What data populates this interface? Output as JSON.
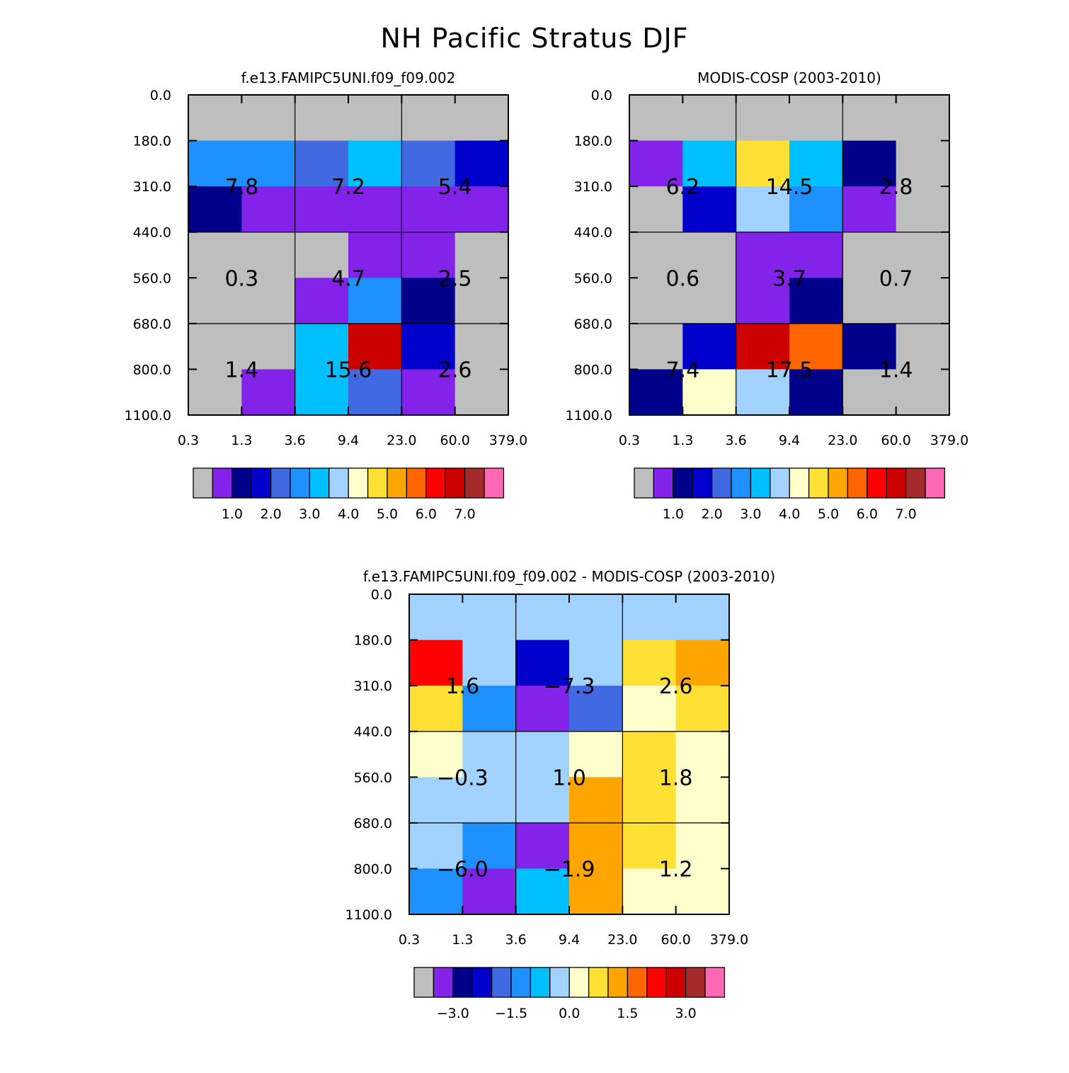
{
  "title": "NH Pacific Stratus DJF",
  "x_tick_labels": [
    "0.3",
    "1.3",
    "3.6",
    "9.4",
    "23.0",
    "60.0",
    "379.0"
  ],
  "y_tick_labels": [
    "0.0",
    "180.0",
    "310.0",
    "440.0",
    "560.0",
    "680.0",
    "800.0",
    "1100.0"
  ],
  "palette": [
    "#bebebe",
    "#8323ea",
    "#00008b",
    "#0000cd",
    "#4169e1",
    "#1e90ff",
    "#00bfff",
    "#a2d2ff",
    "#ffffcc",
    "#ffe135",
    "#ffa500",
    "#ff6600",
    "#ff0000",
    "#cd0000",
    "#a52a2a",
    "#ff69b4"
  ],
  "chart_data": [
    {
      "type": "heatmap",
      "title": "f.e13.FAMIPC5UNI.f09_f09.002",
      "x_ticks": [
        "0.3",
        "1.3",
        "3.6",
        "9.4",
        "23.0",
        "60.0",
        "379.0"
      ],
      "y_ticks": [
        "0.0",
        "180.0",
        "310.0",
        "440.0",
        "560.0",
        "680.0",
        "800.0",
        "1100.0"
      ],
      "cells": [
        [
          "#bebebe",
          "#bebebe",
          "#bebebe",
          "#bebebe",
          "#bebebe",
          "#bebebe"
        ],
        [
          "#1e90ff",
          "#1e90ff",
          "#4169e1",
          "#00bfff",
          "#4169e1",
          "#0000cd"
        ],
        [
          "#00008b",
          "#8323ea",
          "#8323ea",
          "#8323ea",
          "#8323ea",
          "#8323ea"
        ],
        [
          "#bebebe",
          "#bebebe",
          "#bebebe",
          "#8323ea",
          "#8323ea",
          "#bebebe"
        ],
        [
          "#bebebe",
          "#bebebe",
          "#8323ea",
          "#1e90ff",
          "#00008b",
          "#bebebe"
        ],
        [
          "#bebebe",
          "#bebebe",
          "#00bfff",
          "#cd0000",
          "#0000cd",
          "#bebebe"
        ],
        [
          "#bebebe",
          "#8323ea",
          "#00bfff",
          "#4169e1",
          "#8323ea",
          "#bebebe"
        ]
      ],
      "box_values": [
        [
          "7.8",
          "7.2",
          "5.4"
        ],
        [
          "0.3",
          "4.7",
          "2.5"
        ],
        [
          "1.4",
          "15.6",
          "2.6"
        ]
      ],
      "colorbar": {
        "colors": [
          "#bebebe",
          "#8323ea",
          "#00008b",
          "#0000cd",
          "#4169e1",
          "#1e90ff",
          "#00bfff",
          "#a2d2ff",
          "#ffffcc",
          "#ffe135",
          "#ffa500",
          "#ff6600",
          "#ff0000",
          "#cd0000",
          "#a52a2a",
          "#ff69b4"
        ],
        "labels": [
          "1.0",
          "2.0",
          "3.0",
          "4.0",
          "5.0",
          "6.0",
          "7.0"
        ],
        "label_boundaries": [
          2,
          4,
          6,
          8,
          10,
          12,
          14
        ]
      }
    },
    {
      "type": "heatmap",
      "title": "MODIS-COSP (2003-2010)",
      "x_ticks": [
        "0.3",
        "1.3",
        "3.6",
        "9.4",
        "23.0",
        "60.0",
        "379.0"
      ],
      "y_ticks": [
        "0.0",
        "180.0",
        "310.0",
        "440.0",
        "560.0",
        "680.0",
        "800.0",
        "1100.0"
      ],
      "cells": [
        [
          "#bebebe",
          "#bebebe",
          "#bebebe",
          "#bebebe",
          "#bebebe",
          "#bebebe"
        ],
        [
          "#8323ea",
          "#00bfff",
          "#ffe135",
          "#00bfff",
          "#00008b",
          "#bebebe"
        ],
        [
          "#bebebe",
          "#0000cd",
          "#a2d2ff",
          "#1e90ff",
          "#8323ea",
          "#bebebe"
        ],
        [
          "#bebebe",
          "#bebebe",
          "#8323ea",
          "#8323ea",
          "#bebebe",
          "#bebebe"
        ],
        [
          "#bebebe",
          "#bebebe",
          "#8323ea",
          "#00008b",
          "#bebebe",
          "#bebebe"
        ],
        [
          "#bebebe",
          "#0000cd",
          "#cd0000",
          "#ff6600",
          "#00008b",
          "#bebebe"
        ],
        [
          "#00008b",
          "#ffffcc",
          "#a2d2ff",
          "#00008b",
          "#bebebe",
          "#bebebe"
        ]
      ],
      "box_values": [
        [
          "6.2",
          "14.5",
          "2.8"
        ],
        [
          "0.6",
          "3.7",
          "0.7"
        ],
        [
          "7.4",
          "17.5",
          "1.4"
        ]
      ],
      "colorbar": {
        "colors": [
          "#bebebe",
          "#8323ea",
          "#00008b",
          "#0000cd",
          "#4169e1",
          "#1e90ff",
          "#00bfff",
          "#a2d2ff",
          "#ffffcc",
          "#ffe135",
          "#ffa500",
          "#ff6600",
          "#ff0000",
          "#cd0000",
          "#a52a2a",
          "#ff69b4"
        ],
        "labels": [
          "1.0",
          "2.0",
          "3.0",
          "4.0",
          "5.0",
          "6.0",
          "7.0"
        ],
        "label_boundaries": [
          2,
          4,
          6,
          8,
          10,
          12,
          14
        ]
      }
    },
    {
      "type": "heatmap",
      "title": "f.e13.FAMIPC5UNI.f09_f09.002 - MODIS-COSP (2003-2010)",
      "x_ticks": [
        "0.3",
        "1.3",
        "3.6",
        "9.4",
        "23.0",
        "60.0",
        "379.0"
      ],
      "y_ticks": [
        "0.0",
        "180.0",
        "310.0",
        "440.0",
        "560.0",
        "680.0",
        "800.0",
        "1100.0"
      ],
      "cells": [
        [
          "#a2d2ff",
          "#a2d2ff",
          "#a2d2ff",
          "#a2d2ff",
          "#a2d2ff",
          "#a2d2ff"
        ],
        [
          "#ff0000",
          "#a2d2ff",
          "#0000cd",
          "#a2d2ff",
          "#ffe135",
          "#ffa500"
        ],
        [
          "#ffe135",
          "#1e90ff",
          "#8323ea",
          "#4169e1",
          "#ffffcc",
          "#ffe135"
        ],
        [
          "#ffffcc",
          "#a2d2ff",
          "#a2d2ff",
          "#ffffcc",
          "#ffe135",
          "#ffffcc"
        ],
        [
          "#a2d2ff",
          "#a2d2ff",
          "#a2d2ff",
          "#ffa500",
          "#ffe135",
          "#ffffcc"
        ],
        [
          "#a2d2ff",
          "#1e90ff",
          "#8323ea",
          "#ffa500",
          "#ffe135",
          "#ffffcc"
        ],
        [
          "#1e90ff",
          "#8323ea",
          "#00bfff",
          "#ffa500",
          "#ffffcc",
          "#ffffcc"
        ]
      ],
      "box_values": [
        [
          "1.6",
          "-7.3",
          "2.6"
        ],
        [
          "-0.3",
          "1.0",
          "1.8"
        ],
        [
          "-6.0",
          "-1.9",
          "1.2"
        ]
      ],
      "colorbar": {
        "colors": [
          "#bebebe",
          "#8323ea",
          "#00008b",
          "#0000cd",
          "#4169e1",
          "#1e90ff",
          "#00bfff",
          "#a2d2ff",
          "#ffffcc",
          "#ffe135",
          "#ffa500",
          "#ff6600",
          "#ff0000",
          "#cd0000",
          "#a52a2a",
          "#ff69b4"
        ],
        "labels": [
          "-3.0",
          "-1.5",
          "0.0",
          "1.5",
          "3.0"
        ],
        "label_boundaries": [
          2,
          5,
          8,
          11,
          14
        ]
      }
    }
  ]
}
